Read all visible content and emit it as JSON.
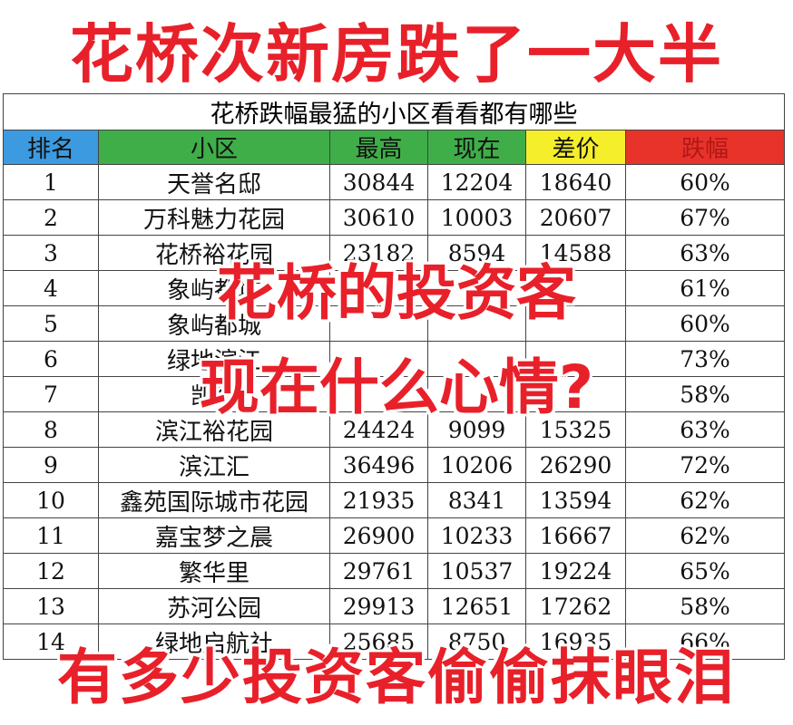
{
  "headline_top": "花桥次新房跌了一大半",
  "overlay_line1": "花桥的投资客",
  "overlay_line2": "现在什么心情?",
  "headline_bottom": "有多少投资客偷偷抹眼泪",
  "table": {
    "caption": "花桥跌幅最猛的小区看看都有哪些",
    "headers": {
      "rank": "排名",
      "name": "小区",
      "high": "最高",
      "now": "现在",
      "diff": "差价",
      "drop": "跌幅"
    },
    "header_colors": {
      "rank": "#3c9be0",
      "name": "#3fae49",
      "diff": "#f5ee2b",
      "drop": "#e8332a"
    },
    "rows": [
      {
        "rank": "1",
        "name": "天誉名邸",
        "high": "30844",
        "now": "12204",
        "diff": "18640",
        "drop": "60%"
      },
      {
        "rank": "2",
        "name": "万科魅力花园",
        "high": "30610",
        "now": "10003",
        "diff": "20607",
        "drop": "67%"
      },
      {
        "rank": "3",
        "name": "花桥裕花园",
        "high": "23182",
        "now": "8594",
        "diff": "14588",
        "drop": "63%"
      },
      {
        "rank": "4",
        "name": "象屿都城",
        "high": "",
        "now": "",
        "diff": "",
        "drop": "61%"
      },
      {
        "rank": "5",
        "name": "象屿都城",
        "high": "",
        "now": "",
        "diff": "",
        "drop": "60%"
      },
      {
        "rank": "6",
        "name": "绿地滨江",
        "high": "",
        "now": "",
        "diff": "",
        "drop": "73%"
      },
      {
        "rank": "7",
        "name": "凯德",
        "high": "",
        "now": "",
        "diff": "",
        "drop": "58%"
      },
      {
        "rank": "8",
        "name": "滨江裕花园",
        "high": "24424",
        "now": "9099",
        "diff": "15325",
        "drop": "63%"
      },
      {
        "rank": "9",
        "name": "滨江汇",
        "high": "36496",
        "now": "10206",
        "diff": "26290",
        "drop": "72%"
      },
      {
        "rank": "10",
        "name": "鑫苑国际城市花园",
        "high": "21935",
        "now": "8341",
        "diff": "13594",
        "drop": "62%"
      },
      {
        "rank": "11",
        "name": "嘉宝梦之晨",
        "high": "26900",
        "now": "10233",
        "diff": "16667",
        "drop": "62%"
      },
      {
        "rank": "12",
        "name": "繁华里",
        "high": "29761",
        "now": "10537",
        "diff": "19224",
        "drop": "65%"
      },
      {
        "rank": "13",
        "name": "苏河公园",
        "high": "29913",
        "now": "12651",
        "diff": "17262",
        "drop": "58%"
      },
      {
        "rank": "14",
        "name": "绿地启航社",
        "high": "25685",
        "now": "8750",
        "diff": "16935",
        "drop": "66%"
      }
    ]
  }
}
